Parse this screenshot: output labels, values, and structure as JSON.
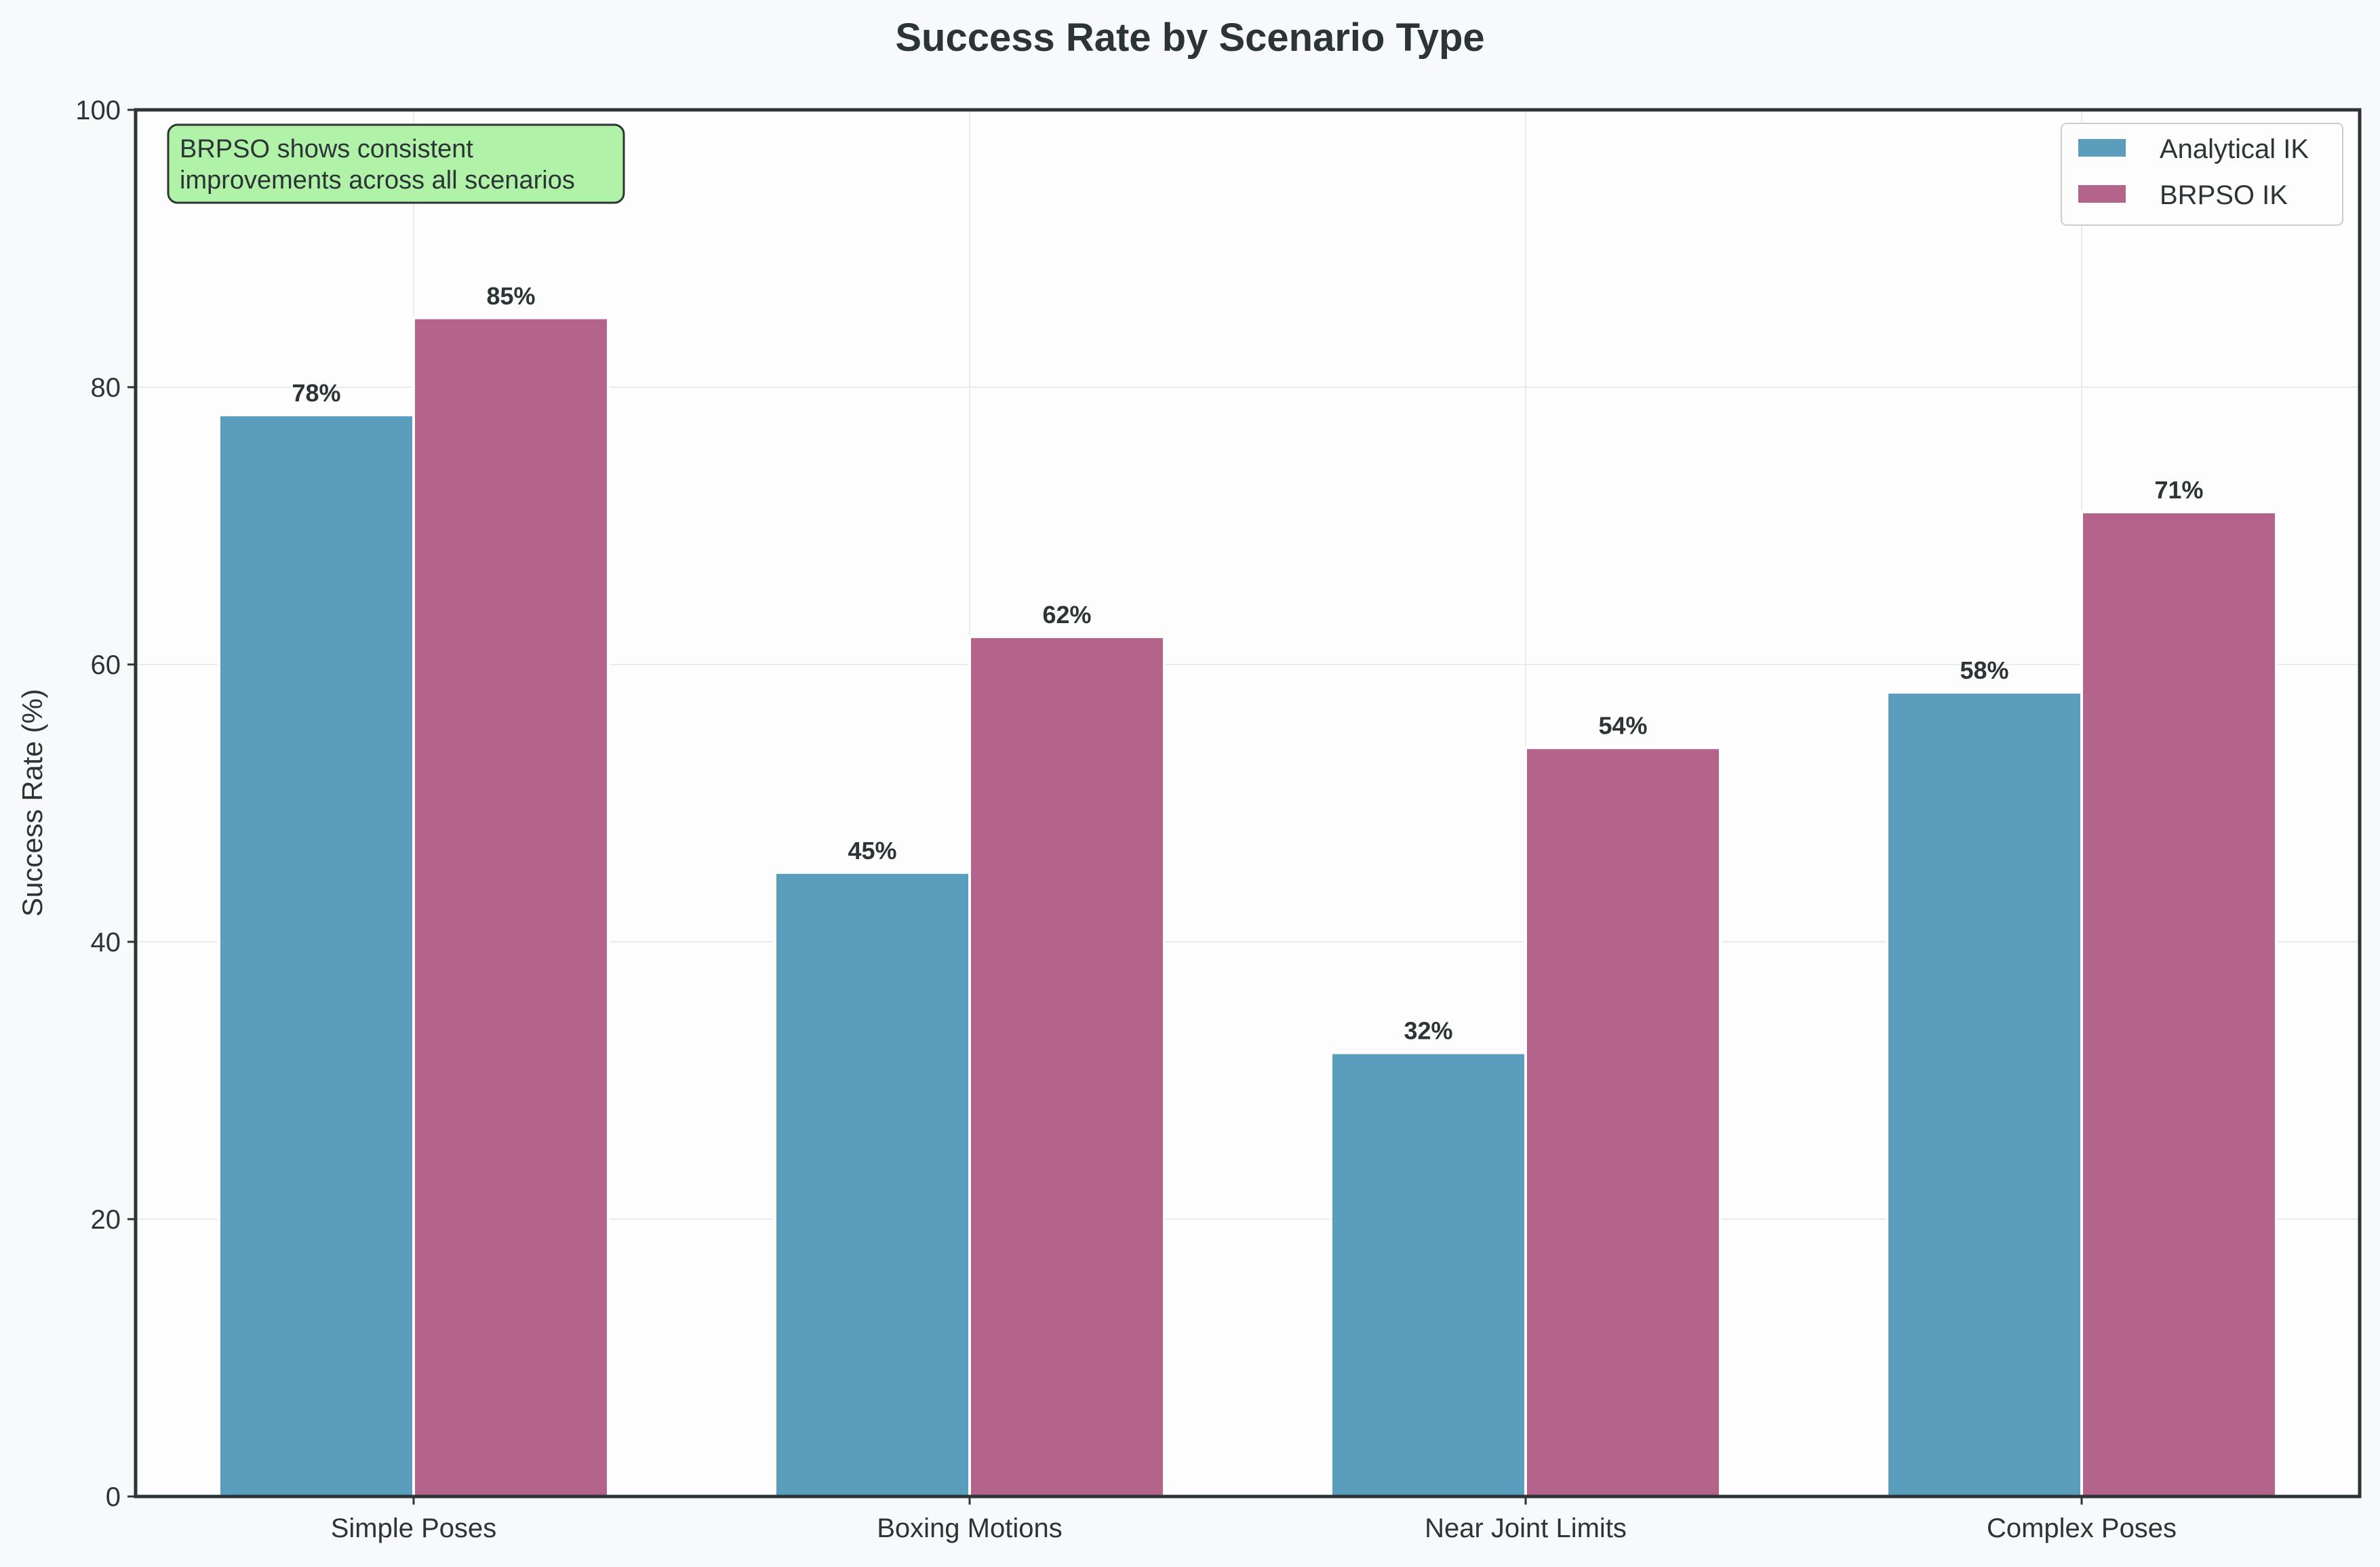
{
  "chart_data": {
    "type": "bar",
    "title": "Success Rate by Scenario Type",
    "xlabel": "",
    "ylabel": "Success Rate (%)",
    "ylim": [
      0,
      100
    ],
    "yticks": [
      0,
      20,
      40,
      60,
      80,
      100
    ],
    "grid": true,
    "legend_position": "top-right",
    "categories": [
      "Simple Poses",
      "Boxing Motions",
      "Near Joint Limits",
      "Complex Poses"
    ],
    "series": [
      {
        "name": "Analytical IK",
        "color": "#5a9dbd",
        "values": [
          78,
          45,
          32,
          58
        ],
        "labels": [
          "78%",
          "45%",
          "32%",
          "58%"
        ]
      },
      {
        "name": "BRPSO IK",
        "color": "#b4638a",
        "values": [
          85,
          62,
          54,
          71
        ],
        "labels": [
          "85%",
          "62%",
          "54%",
          "71%"
        ]
      }
    ],
    "annotation": {
      "lines": [
        "BRPSO shows consistent",
        "improvements across all scenarios"
      ],
      "position": "top-left",
      "background": "#b0f3a8"
    }
  }
}
